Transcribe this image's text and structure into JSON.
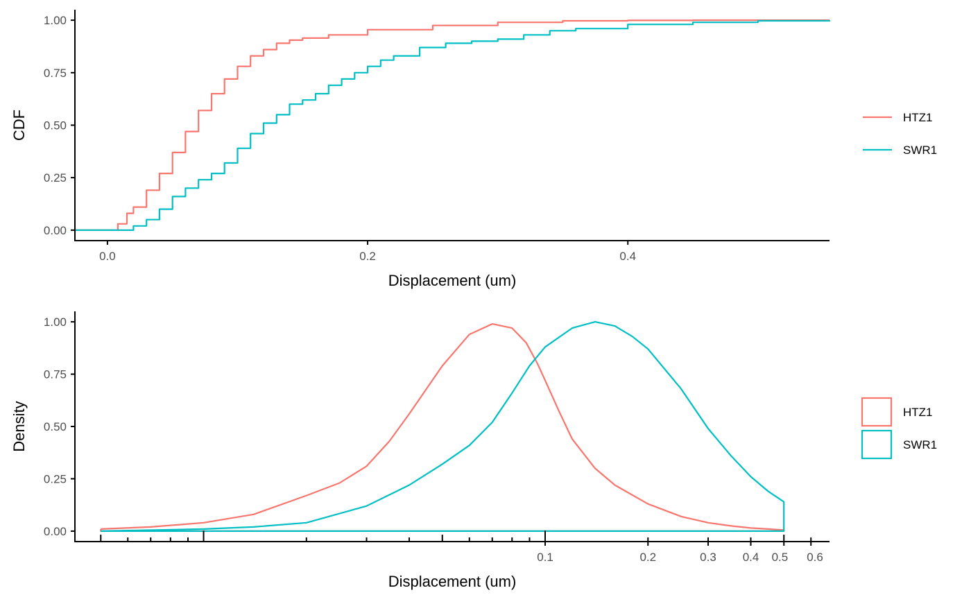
{
  "chart_data": [
    {
      "type": "line",
      "subtype": "ecdf",
      "xlabel": "Displacement (um)",
      "ylabel": "CDF",
      "xlim": [
        -0.025,
        0.555
      ],
      "ylim": [
        -0.05,
        1.05
      ],
      "xticks": [
        0.0,
        0.2,
        0.4
      ],
      "xtick_labels": [
        "0.0",
        "0.2",
        "0.4"
      ],
      "yticks": [
        0,
        0.25,
        0.5,
        0.75,
        1.0
      ],
      "ytick_labels": [
        "0.00",
        "0.25",
        "0.50",
        "0.75",
        "1.00"
      ],
      "grid": false,
      "legend_position": "right",
      "series": [
        {
          "name": "HTZ1",
          "color": "#F8766D",
          "x": [
            -0.025,
            0.003,
            0.008,
            0.015,
            0.02,
            0.03,
            0.04,
            0.05,
            0.06,
            0.07,
            0.08,
            0.09,
            0.1,
            0.11,
            0.12,
            0.13,
            0.14,
            0.15,
            0.17,
            0.2,
            0.25,
            0.3,
            0.35,
            0.4,
            0.45,
            0.5,
            0.555
          ],
          "y": [
            0.0,
            0.0,
            0.03,
            0.08,
            0.11,
            0.19,
            0.27,
            0.37,
            0.47,
            0.57,
            0.65,
            0.72,
            0.78,
            0.83,
            0.86,
            0.89,
            0.905,
            0.915,
            0.93,
            0.955,
            0.975,
            0.99,
            0.997,
            0.999,
            1.0,
            1.0,
            1.0
          ]
        },
        {
          "name": "SWR1",
          "color": "#00BFC4",
          "x": [
            -0.025,
            0.008,
            0.02,
            0.03,
            0.04,
            0.05,
            0.06,
            0.07,
            0.08,
            0.09,
            0.1,
            0.11,
            0.12,
            0.13,
            0.14,
            0.15,
            0.16,
            0.17,
            0.18,
            0.19,
            0.2,
            0.21,
            0.22,
            0.24,
            0.26,
            0.28,
            0.3,
            0.32,
            0.34,
            0.36,
            0.4,
            0.45,
            0.5,
            0.555
          ],
          "y": [
            0.0,
            0.0,
            0.02,
            0.05,
            0.1,
            0.16,
            0.2,
            0.24,
            0.27,
            0.32,
            0.39,
            0.46,
            0.51,
            0.55,
            0.6,
            0.62,
            0.65,
            0.69,
            0.72,
            0.75,
            0.78,
            0.81,
            0.83,
            0.87,
            0.89,
            0.9,
            0.91,
            0.93,
            0.95,
            0.96,
            0.98,
            0.99,
            0.997,
            1.0
          ]
        }
      ]
    },
    {
      "type": "line",
      "subtype": "density",
      "xlabel": "Displacement (um)",
      "ylabel": "Density",
      "xscale": "log10",
      "xlim": [
        0.0042,
        0.68
      ],
      "ylim": [
        -0.05,
        1.05
      ],
      "xtick_labels_shown": [
        "0.1",
        "0.2",
        "0.3",
        "0.4",
        "0.5",
        "0.6"
      ],
      "yticks": [
        0,
        0.25,
        0.5,
        0.75,
        1.0
      ],
      "ytick_labels": [
        "0.00",
        "0.25",
        "0.50",
        "0.75",
        "1.00"
      ],
      "grid": false,
      "legend_position": "right",
      "series": [
        {
          "name": "HTZ1",
          "color": "#F8766D",
          "x": [
            0.005,
            0.007,
            0.01,
            0.014,
            0.02,
            0.025,
            0.03,
            0.035,
            0.04,
            0.05,
            0.06,
            0.07,
            0.08,
            0.088,
            0.095,
            0.1,
            0.11,
            0.12,
            0.14,
            0.16,
            0.2,
            0.25,
            0.3,
            0.35,
            0.4,
            0.45,
            0.5
          ],
          "y": [
            0.01,
            0.02,
            0.04,
            0.08,
            0.17,
            0.23,
            0.31,
            0.43,
            0.56,
            0.79,
            0.94,
            0.99,
            0.97,
            0.9,
            0.8,
            0.72,
            0.57,
            0.44,
            0.3,
            0.22,
            0.13,
            0.07,
            0.04,
            0.025,
            0.015,
            0.01,
            0.005
          ]
        },
        {
          "name": "SWR1",
          "color": "#00BFC4",
          "x": [
            0.005,
            0.01,
            0.014,
            0.02,
            0.03,
            0.04,
            0.05,
            0.06,
            0.07,
            0.08,
            0.09,
            0.1,
            0.12,
            0.14,
            0.16,
            0.18,
            0.2,
            0.25,
            0.3,
            0.35,
            0.4,
            0.45,
            0.5
          ],
          "y": [
            0.0,
            0.01,
            0.02,
            0.04,
            0.12,
            0.22,
            0.32,
            0.41,
            0.52,
            0.66,
            0.79,
            0.88,
            0.97,
            1.0,
            0.98,
            0.93,
            0.87,
            0.68,
            0.49,
            0.36,
            0.26,
            0.19,
            0.14
          ]
        }
      ]
    }
  ]
}
